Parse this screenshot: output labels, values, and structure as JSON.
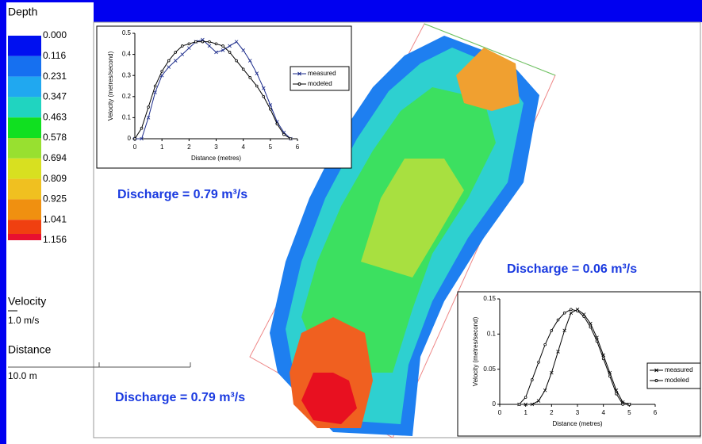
{
  "legend": {
    "title": "Depth",
    "items": [
      {
        "label": "0.000",
        "color": "#0010f0"
      },
      {
        "label": "0.116",
        "color": "#1670f0"
      },
      {
        "label": "0.231",
        "color": "#20a8f0"
      },
      {
        "label": "0.347",
        "color": "#20d4c0"
      },
      {
        "label": "0.463",
        "color": "#10e020"
      },
      {
        "label": "0.578",
        "color": "#98e030"
      },
      {
        "label": "0.694",
        "color": "#d8e020"
      },
      {
        "label": "0.809",
        "color": "#f0c020"
      },
      {
        "label": "0.925",
        "color": "#f09010"
      },
      {
        "label": "1.041",
        "color": "#f04010"
      },
      {
        "label": "1.156",
        "color": "#e81030"
      }
    ]
  },
  "velocity": {
    "title": "Velocity",
    "scale": "1.0 m/s"
  },
  "distance": {
    "title": "Distance",
    "scale": "10.0 m"
  },
  "annotations": [
    "Discharge = 0.79 m³/s",
    "Discharge = 0.06 m³/s",
    "Discharge = 0.79 m³/s"
  ],
  "chart_data": [
    {
      "type": "line",
      "x_label": "Distance (metres)",
      "y_label": "Velocity (metres/second)",
      "x": [
        0,
        0.25,
        0.5,
        0.75,
        1,
        1.25,
        1.5,
        1.75,
        2,
        2.25,
        2.5,
        2.75,
        3,
        3.25,
        3.5,
        3.75,
        4,
        4.25,
        4.5,
        4.75,
        5,
        5.25,
        5.5,
        5.75
      ],
      "series": [
        {
          "name": "measured",
          "color": "#1a2a8a",
          "marker": "x",
          "values": [
            0,
            0,
            0.1,
            0.22,
            0.3,
            0.34,
            0.37,
            0.4,
            0.43,
            0.46,
            0.47,
            0.44,
            0.41,
            0.42,
            0.44,
            0.46,
            0.42,
            0.37,
            0.31,
            0.24,
            0.16,
            0.08,
            0.03,
            0
          ]
        },
        {
          "name": "modeled",
          "color": "#000000",
          "marker": "circle",
          "values": [
            0,
            0.05,
            0.15,
            0.25,
            0.32,
            0.37,
            0.41,
            0.44,
            0.45,
            0.46,
            0.46,
            0.46,
            0.45,
            0.44,
            0.41,
            0.37,
            0.33,
            0.29,
            0.25,
            0.2,
            0.14,
            0.07,
            0.02,
            0
          ]
        }
      ],
      "xlim": [
        0,
        6
      ],
      "xticks": [
        0,
        1,
        2,
        3,
        4,
        5,
        6
      ],
      "ylim": [
        0,
        0.5
      ],
      "yticks": [
        0,
        0.1,
        0.2,
        0.3,
        0.4,
        0.5
      ]
    },
    {
      "type": "line",
      "x_label": "Distance (metres)",
      "y_label": "Velocity (metres/second)",
      "x": [
        0.75,
        1,
        1.25,
        1.5,
        1.75,
        2,
        2.25,
        2.5,
        2.75,
        3,
        3.25,
        3.5,
        3.75,
        4,
        4.25,
        4.5,
        4.75,
        5
      ],
      "series": [
        {
          "name": "measured",
          "color": "#000000",
          "marker": "x",
          "values": [
            0,
            0,
            0,
            0.005,
            0.02,
            0.045,
            0.075,
            0.105,
            0.13,
            0.135,
            0.128,
            0.115,
            0.095,
            0.07,
            0.045,
            0.02,
            0.003,
            0
          ]
        },
        {
          "name": "modeled",
          "color": "#000000",
          "marker": "circle",
          "values": [
            0,
            0.01,
            0.035,
            0.06,
            0.085,
            0.105,
            0.12,
            0.13,
            0.135,
            0.133,
            0.125,
            0.11,
            0.09,
            0.065,
            0.04,
            0.015,
            0,
            0
          ]
        }
      ],
      "xlim": [
        0,
        6
      ],
      "xticks": [
        0,
        1,
        2,
        3,
        4,
        5,
        6
      ],
      "ylim": [
        0,
        0.15
      ],
      "yticks": [
        0,
        0.05,
        0.1,
        0.15
      ]
    }
  ]
}
